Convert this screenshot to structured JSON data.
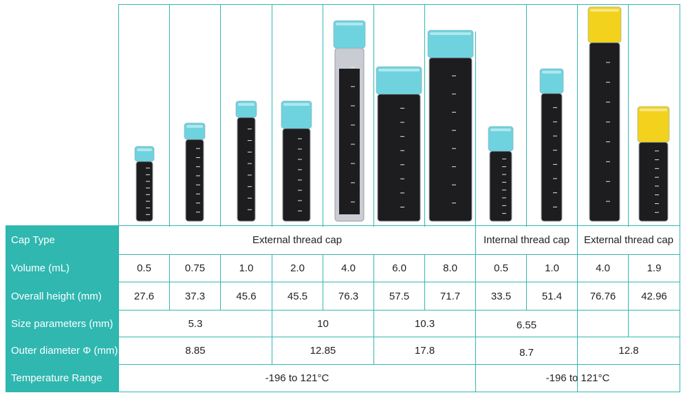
{
  "table": {
    "row_headers": {
      "cap_type": "Cap Type",
      "volume": "Volume (mL)",
      "overall_height": "Overall height (mm)",
      "size_parameters": "Size parameters (mm)",
      "outer_diameter": "Outer diameter Φ (mm)",
      "temperature_range": "Temperature Range"
    },
    "cap_type": {
      "group1": "External thread cap",
      "group2": "Internal thread cap",
      "group3": "External thread cap"
    },
    "volume": [
      "0.5",
      "0.75",
      "1.0",
      "2.0",
      "4.0",
      "6.0",
      "8.0",
      "0.5",
      "1.0",
      "4.0",
      "1.9"
    ],
    "overall_height": [
      "27.6",
      "37.3",
      "45.6",
      "45.5",
      "76.3",
      "57.5",
      "71.7",
      "33.5",
      "51.4",
      "76.76",
      "42.96"
    ],
    "size_parameters": {
      "a": "5.3",
      "b": "10",
      "c": "10.3",
      "d": "6.55",
      "e": ""
    },
    "outer_diameter": {
      "a": "8.85",
      "b": "12.85",
      "c": "17.8",
      "d": "8.7",
      "e": "12.8"
    },
    "temperature_range": {
      "left": "-196 to 121°C",
      "right": "-196 to 121°C"
    }
  },
  "tubes": [
    {
      "cap": "blue",
      "fill": "dark"
    },
    {
      "cap": "blue",
      "fill": "dark"
    },
    {
      "cap": "blue",
      "fill": "dark"
    },
    {
      "cap": "blue",
      "fill": "dark"
    },
    {
      "cap": "blue",
      "fill": "clear"
    },
    {
      "cap": "blue",
      "fill": "dark"
    },
    {
      "cap": "blue",
      "fill": "dark"
    },
    {
      "cap": "blue",
      "fill": "dark"
    },
    {
      "cap": "blue",
      "fill": "dark"
    },
    {
      "cap": "yellow",
      "fill": "dark"
    },
    {
      "cap": "yellow",
      "fill": "dark"
    }
  ],
  "colors": {
    "accent": "#2fb7b0",
    "cap_blue": "#6fd3df",
    "cap_yellow": "#f2d21c",
    "tube_dark": "#1d1d1f"
  }
}
